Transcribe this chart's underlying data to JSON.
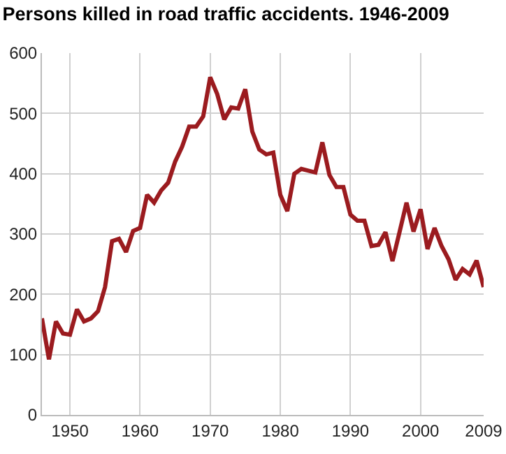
{
  "chart_data": {
    "type": "line",
    "title": "Persons killed in road traffic accidents. 1946-2009",
    "x": [
      1946,
      1947,
      1948,
      1949,
      1950,
      1951,
      1952,
      1953,
      1954,
      1955,
      1956,
      1957,
      1958,
      1959,
      1960,
      1961,
      1962,
      1963,
      1964,
      1965,
      1966,
      1967,
      1968,
      1969,
      1970,
      1971,
      1972,
      1973,
      1974,
      1975,
      1976,
      1977,
      1978,
      1979,
      1980,
      1981,
      1982,
      1983,
      1984,
      1985,
      1986,
      1987,
      1988,
      1989,
      1990,
      1991,
      1992,
      1993,
      1994,
      1995,
      1996,
      1997,
      1998,
      1999,
      2000,
      2001,
      2002,
      2003,
      2004,
      2005,
      2006,
      2007,
      2008,
      2009
    ],
    "series": [
      {
        "color": "#9b1b1f",
        "values": [
          160,
          92,
          155,
          135,
          133,
          175,
          155,
          160,
          172,
          212,
          288,
          292,
          270,
          305,
          310,
          365,
          352,
          372,
          385,
          420,
          445,
          478,
          478,
          495,
          560,
          532,
          490,
          510,
          508,
          540,
          470,
          440,
          432,
          435,
          365,
          338,
          400,
          408,
          405,
          402,
          452,
          398,
          378,
          378,
          332,
          322,
          322,
          280,
          282,
          303,
          255,
          303,
          352,
          304,
          341,
          275,
          310,
          280,
          258,
          224,
          242,
          233,
          256,
          212
        ]
      }
    ],
    "xlim": [
      1946,
      2009
    ],
    "xticks": [
      1950,
      1960,
      1970,
      1980,
      1990,
      2000,
      2009
    ],
    "ylim": [
      0,
      600
    ],
    "yticks": [
      0,
      100,
      200,
      300,
      400,
      500,
      600
    ],
    "grid": true,
    "marker": "none",
    "line_style": "solid"
  }
}
